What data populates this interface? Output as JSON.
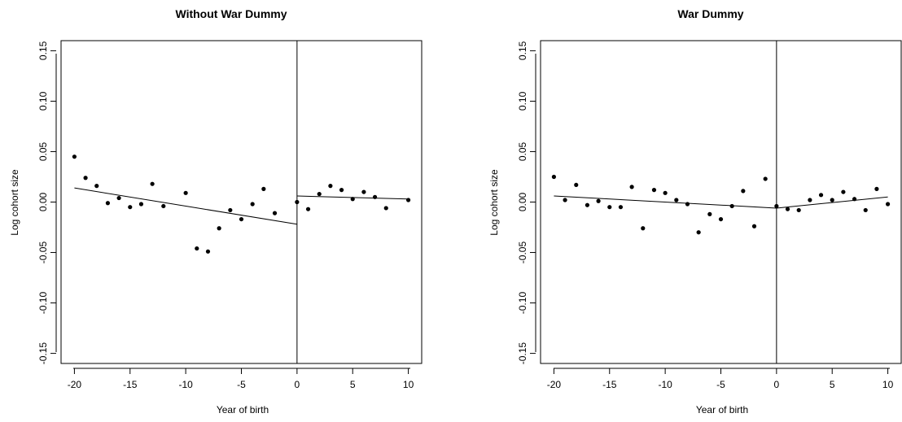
{
  "chart_data": [
    {
      "type": "scatter",
      "title": "Without War Dummy",
      "xlabel": "Year of birth",
      "ylabel": "Log cohort size",
      "xlim": [
        -21.2,
        11.2
      ],
      "ylim": [
        -0.16,
        0.16
      ],
      "xticks": [
        -20,
        -15,
        -10,
        -5,
        0,
        5,
        10
      ],
      "yticks": [
        -0.15,
        -0.1,
        -0.05,
        0.0,
        0.05,
        0.1,
        0.15
      ],
      "xtick_labels": [
        "-20",
        "-15",
        "-10",
        "-5",
        "0",
        "5",
        "10"
      ],
      "ytick_labels": [
        "-0.15",
        "-0.10",
        "-0.05",
        "0.00",
        "0.05",
        "0.10",
        "0.15"
      ],
      "cutoff_x": 0,
      "points": {
        "x": [
          -20,
          -19,
          -18,
          -17,
          -16,
          -15,
          -14,
          -13,
          -12,
          -10,
          -9,
          -8,
          -7,
          -6,
          -5,
          -4,
          -3,
          -2,
          0,
          1,
          2,
          3,
          4,
          5,
          6,
          7,
          8,
          10
        ],
        "y": [
          0.045,
          0.024,
          0.016,
          -0.001,
          0.004,
          -0.005,
          -0.002,
          0.018,
          -0.004,
          0.009,
          -0.046,
          -0.049,
          -0.026,
          -0.008,
          -0.017,
          -0.002,
          0.013,
          -0.011,
          0.0,
          -0.007,
          0.008,
          0.016,
          0.012,
          0.003,
          0.01,
          0.005,
          -0.006,
          0.002
        ]
      },
      "fit_left": {
        "x": [
          -20,
          0
        ],
        "y": [
          0.014,
          -0.022
        ]
      },
      "fit_right": {
        "x": [
          0,
          10
        ],
        "y": [
          0.006,
          0.003
        ]
      }
    },
    {
      "type": "scatter",
      "title": "War Dummy",
      "xlabel": "Year of birth",
      "ylabel": "Log cohort size",
      "xlim": [
        -21.2,
        11.2
      ],
      "ylim": [
        -0.16,
        0.16
      ],
      "xticks": [
        -20,
        -15,
        -10,
        -5,
        0,
        5,
        10
      ],
      "yticks": [
        -0.15,
        -0.1,
        -0.05,
        0.0,
        0.05,
        0.1,
        0.15
      ],
      "xtick_labels": [
        "-20",
        "-15",
        "-10",
        "-5",
        "0",
        "5",
        "10"
      ],
      "ytick_labels": [
        "-0.15",
        "-0.10",
        "-0.05",
        "0.00",
        "0.05",
        "0.10",
        "0.15"
      ],
      "cutoff_x": 0,
      "points": {
        "x": [
          -20,
          -19,
          -18,
          -17,
          -16,
          -15,
          -14,
          -13,
          -12,
          -11,
          -10,
          -9,
          -8,
          -7,
          -6,
          -5,
          -4,
          -3,
          -2,
          -1,
          0,
          1,
          2,
          3,
          4,
          5,
          6,
          7,
          8,
          9,
          10
        ],
        "y": [
          0.025,
          0.002,
          0.017,
          -0.003,
          0.001,
          -0.005,
          -0.005,
          0.015,
          -0.026,
          0.012,
          0.009,
          0.002,
          -0.002,
          -0.03,
          -0.012,
          -0.017,
          -0.004,
          0.011,
          -0.024,
          0.023,
          -0.004,
          -0.007,
          -0.008,
          0.002,
          0.007,
          0.002,
          0.01,
          0.003,
          -0.008,
          0.013,
          -0.002
        ]
      },
      "fit_left": {
        "x": [
          -20,
          0
        ],
        "y": [
          0.006,
          -0.006
        ]
      },
      "fit_right": {
        "x": [
          0,
          10
        ],
        "y": [
          -0.006,
          0.005
        ]
      }
    }
  ]
}
